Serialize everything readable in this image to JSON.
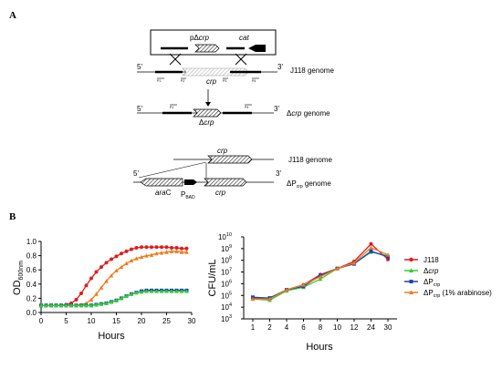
{
  "panel_a": {
    "label": "A",
    "plasmid_label_prefix": "pΔ",
    "plasmid_label_gene": "crp",
    "cat_label": "cat",
    "crp_label": "crp",
    "five_prime": "5'",
    "three_prime": "3'",
    "row1_genome": "J118 genome",
    "row2_genome": "genome",
    "row2_genome_prefix": "Δ",
    "row2_genome_gene": "crp",
    "delta_crp_prefix": "Δ",
    "delta_crp_gene": "crp",
    "row3_crp": "crp",
    "row3_genome": "J118 genome",
    "row4_arac_prefix": "ara",
    "row4_arac_suffix": "C",
    "row4_pbad_main": "P",
    "row4_pbad_sub": "BAD",
    "row4_crp": "crp",
    "row4_genome_prefix": "ΔP",
    "row4_genome_sub": "crp",
    "row4_genome_suffix": " genome",
    "primer_labels": [
      "P1",
      "P2",
      "P3",
      "P4"
    ]
  },
  "panel_b": {
    "label": "B"
  },
  "colors": {
    "J118": "#e41a1c",
    "dcrp": "#33cc33",
    "dPcrp": "#1f3fbf",
    "dPcrp_ara": "#f07a1a"
  },
  "chart_data": [
    {
      "type": "line",
      "ylabel_main": "OD",
      "ylabel_sub": "600nm",
      "xlabel": "Hours",
      "xlim": [
        0,
        30
      ],
      "ylim": [
        0.0,
        1.0
      ],
      "xticks": [
        "0",
        "5",
        "10",
        "15",
        "20",
        "25",
        "30"
      ],
      "yticks": [
        "0.0",
        "0.2",
        "0.4",
        "0.6",
        "0.8",
        "1.0"
      ],
      "x": [
        0,
        1,
        2,
        3,
        4,
        5,
        6,
        7,
        8,
        9,
        10,
        11,
        12,
        13,
        14,
        15,
        16,
        17,
        18,
        19,
        20,
        21,
        22,
        23,
        24,
        25,
        26,
        27,
        28,
        29
      ],
      "series": [
        {
          "key": "J118",
          "values": [
            0.1,
            0.1,
            0.1,
            0.1,
            0.1,
            0.11,
            0.13,
            0.18,
            0.27,
            0.38,
            0.48,
            0.57,
            0.64,
            0.7,
            0.75,
            0.79,
            0.83,
            0.86,
            0.89,
            0.91,
            0.92,
            0.92,
            0.92,
            0.92,
            0.92,
            0.92,
            0.91,
            0.91,
            0.9,
            0.9
          ]
        },
        {
          "key": "dPcrp_ara",
          "values": [
            0.1,
            0.1,
            0.1,
            0.1,
            0.1,
            0.1,
            0.1,
            0.1,
            0.11,
            0.13,
            0.18,
            0.26,
            0.35,
            0.44,
            0.52,
            0.59,
            0.64,
            0.69,
            0.73,
            0.76,
            0.78,
            0.8,
            0.81,
            0.83,
            0.84,
            0.85,
            0.86,
            0.86,
            0.85,
            0.85
          ]
        },
        {
          "key": "dPcrp",
          "values": [
            0.1,
            0.1,
            0.1,
            0.1,
            0.1,
            0.1,
            0.1,
            0.1,
            0.1,
            0.1,
            0.1,
            0.11,
            0.12,
            0.13,
            0.15,
            0.17,
            0.2,
            0.23,
            0.26,
            0.28,
            0.3,
            0.31,
            0.31,
            0.31,
            0.31,
            0.31,
            0.31,
            0.31,
            0.31,
            0.31
          ]
        },
        {
          "key": "dcrp",
          "values": [
            0.1,
            0.1,
            0.1,
            0.1,
            0.1,
            0.1,
            0.1,
            0.1,
            0.1,
            0.1,
            0.1,
            0.11,
            0.12,
            0.13,
            0.15,
            0.17,
            0.2,
            0.23,
            0.26,
            0.28,
            0.29,
            0.3,
            0.3,
            0.3,
            0.3,
            0.3,
            0.3,
            0.3,
            0.3,
            0.3
          ]
        }
      ]
    },
    {
      "type": "line",
      "ylabel": "CFU/mL",
      "xlabel": "Hours",
      "y_scale": "log10",
      "ylim_exp": [
        3,
        10
      ],
      "ytick_exponents": [
        "3",
        "4",
        "5",
        "6",
        "7",
        "8",
        "9",
        "10"
      ],
      "ytick_base": "10",
      "categories": [
        "1",
        "2",
        "4",
        "6",
        "8",
        "10",
        "12",
        "24",
        "30"
      ],
      "series": [
        {
          "key": "J118",
          "name": "J118",
          "values": [
            60000,
            60000,
            300000,
            800000,
            6000000,
            20000000,
            80000000,
            2500000000,
            120000000
          ]
        },
        {
          "key": "dcrp",
          "name_prefix": "Δ",
          "name_gene": "crp",
          "values": [
            50000,
            40000,
            250000,
            500000,
            2500000,
            20000000,
            50000000,
            500000000,
            250000000
          ]
        },
        {
          "key": "dPcrp",
          "name_main": "ΔP",
          "name_sub": "crp",
          "values": [
            70000,
            60000,
            300000,
            600000,
            5000000,
            20000000,
            50000000,
            600000000,
            200000000
          ]
        },
        {
          "key": "dPcrp_ara",
          "name_main": "ΔP",
          "name_sub": "crp",
          "name_suffix": " (1% arabinose)",
          "values": [
            50000,
            50000,
            300000,
            800000,
            4000000,
            20000000,
            60000000,
            1200000000,
            300000000
          ]
        }
      ]
    }
  ]
}
